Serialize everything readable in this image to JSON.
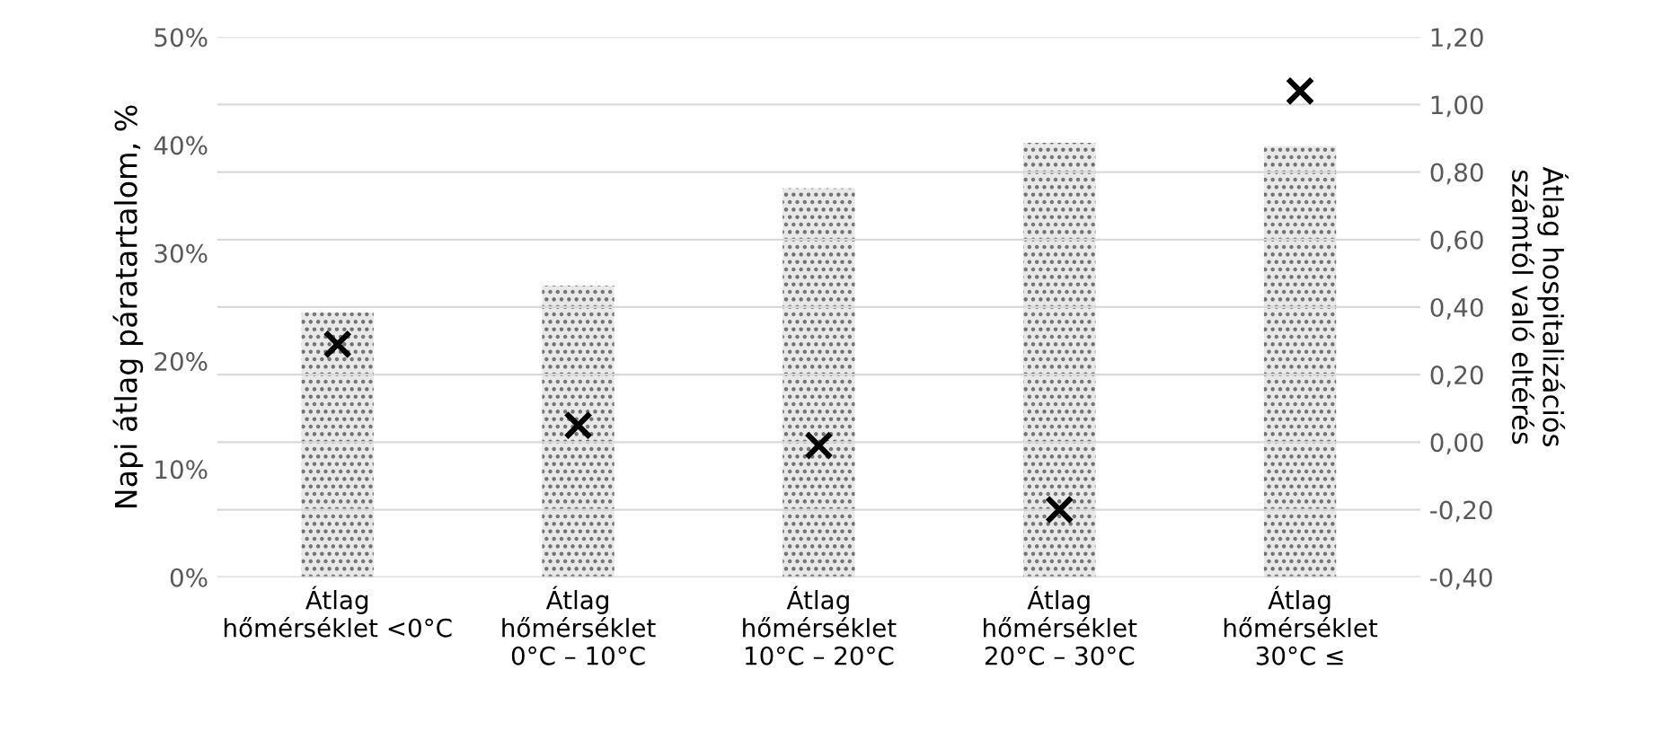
{
  "chart_data": {
    "type": "bar",
    "ylabel": "Napi átlag páratartalom, %",
    "y2label": "Átlag hospitalizációs\nszámtól való eltérés",
    "categories": [
      "Átlag\nhőmérséklet <0°C",
      "Átlag\nhőmérséklet\n0°C – 10°C",
      "Átlag\nhőmérséklet\n10°C – 20°C",
      "Átlag\nhőmérséklet\n20°C – 30°C",
      "Átlag\nhőmérséklet\n30°C ≤"
    ],
    "series": [
      {
        "color": "#707070",
        "values": [
          24.5,
          27.0,
          36.0,
          40.2,
          39.9
        ]
      },
      {
        "type": "scatter",
        "axis": "y2",
        "color": "#000000",
        "marker": "cross",
        "values": [
          0.29,
          0.05,
          -0.01,
          -0.2,
          1.04
        ]
      }
    ],
    "ylim": [
      0,
      50
    ],
    "yticks": [
      {
        "value": 0,
        "label": "0%"
      },
      {
        "value": 10,
        "label": "10%"
      },
      {
        "value": 20,
        "label": "20%"
      },
      {
        "value": 30,
        "label": "30%"
      },
      {
        "value": 40,
        "label": "40%"
      },
      {
        "value": 50,
        "label": "50%"
      }
    ],
    "y2lim": [
      -0.4,
      1.2
    ],
    "y2ticks": [
      {
        "value": -0.4,
        "label": "-0,40"
      },
      {
        "value": -0.2,
        "label": "-0,20"
      },
      {
        "value": 0,
        "label": "0,00"
      },
      {
        "value": 0.2,
        "label": "0,20"
      },
      {
        "value": 0.4,
        "label": "0,40"
      },
      {
        "value": 0.6,
        "label": "0,60"
      },
      {
        "value": 0.8,
        "label": "0,80"
      },
      {
        "value": 1.0,
        "label": "1,00"
      },
      {
        "value": 1.2,
        "label": "1,20"
      }
    ],
    "grid": "y2",
    "legend": false
  }
}
